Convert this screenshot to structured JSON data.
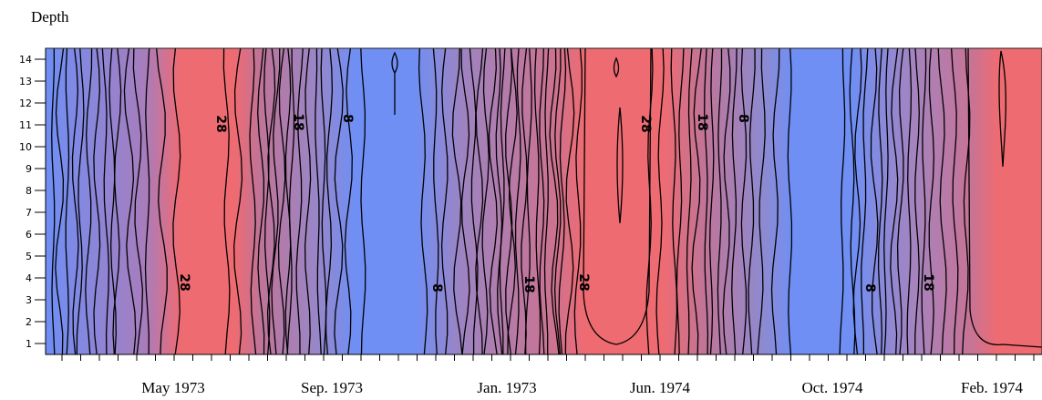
{
  "chart_data": {
    "type": "heatmap",
    "title": "",
    "xlabel": "",
    "ylabel": "Depth",
    "y_ticks": [
      1,
      2,
      3,
      4,
      5,
      6,
      7,
      8,
      9,
      10,
      11,
      12,
      13,
      14
    ],
    "ylim": [
      0.5,
      14.5
    ],
    "x_tick_labels": [
      "May 1973",
      "Sep. 1973",
      "Jan. 1973",
      "Jun. 1974",
      "Oct. 1974",
      "Feb. 1974"
    ],
    "contour_labels": [
      "28",
      "28",
      "18",
      "8",
      "8",
      "18",
      "28",
      "28",
      "18",
      "8",
      "8",
      "18"
    ],
    "grid": false,
    "legend": "none",
    "colors": {
      "low": "#6f8ff5",
      "high": "#ee6b72",
      "line": "#000000",
      "border": "#e0566a"
    }
  }
}
